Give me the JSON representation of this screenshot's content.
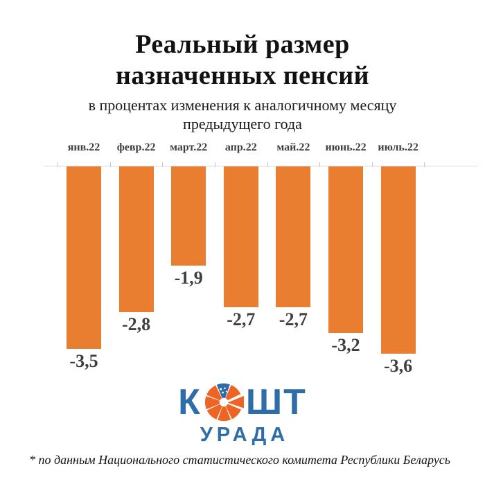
{
  "title": {
    "line1": "Реальный размер",
    "line2": "назначенных пенсий"
  },
  "subtitle": {
    "line1": "в процентах изменения к аналогичному месяцу",
    "line2": "предыдущего года"
  },
  "chart_data": {
    "type": "bar",
    "title": "Реальный размер назначенных пенсий",
    "subtitle": "в процентах изменения к аналогичному месяцу предыдущего года",
    "categories": [
      "янв.22",
      "февр.22",
      "март.22",
      "апр.22",
      "май.22",
      "июнь.22",
      "июль.22"
    ],
    "values": [
      -3.5,
      -2.8,
      -1.9,
      -2.7,
      -2.7,
      -3.2,
      -3.6
    ],
    "value_labels": [
      "-3,5",
      "-2,8",
      "-1,9",
      "-2,7",
      "-2,7",
      "-3,2",
      "-3,6"
    ],
    "xlabel": "",
    "ylabel": "",
    "ylim": [
      -4,
      0
    ],
    "baseline": 0,
    "grid": false,
    "legend": false,
    "bar_color": "#EA7E30",
    "label_color": "#3f3f3f",
    "category_label_color": "#404040",
    "axis_line_color": "#d9d9d9"
  },
  "logo": {
    "word1_prefix": "К",
    "word1_suffix": "ШТ",
    "word2": "УРАДА",
    "blue": "#2F6DA8",
    "orange": "#EE6424"
  },
  "footnote": "* по данным Национального статистического комитета Республики Беларусь"
}
